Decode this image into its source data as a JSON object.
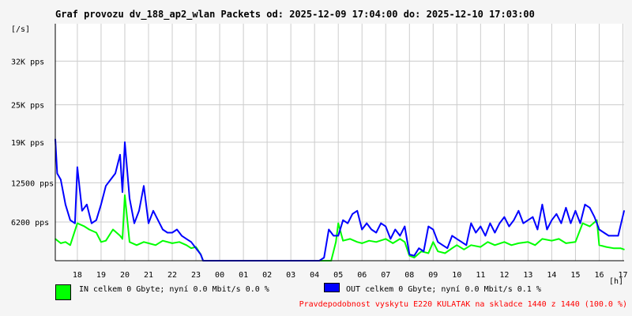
{
  "title": "Graf provozu dv_188_ap2_wlan Packets od: 2025-12-09 17:04:00 do: 2025-12-10 17:03:00",
  "footnote": "Pravdepodobnost vyskytu E220 KULATAK na skladce 1440 z 1440 (100.0 %)",
  "colors": {
    "in": "#00ff00",
    "out": "#0000ff",
    "grid": "#cccccc",
    "axis": "#000000"
  },
  "chart_data": {
    "type": "line",
    "ylabel": "[/s]",
    "xlabel": "[h]",
    "ylim": [
      0,
      38000
    ],
    "yticks": [
      {
        "value": 6200,
        "label": "6200 pps"
      },
      {
        "value": 12500,
        "label": "12500 pps"
      },
      {
        "value": 19000,
        "label": "19K pps"
      },
      {
        "value": 25000,
        "label": "25K pps"
      },
      {
        "value": 32000,
        "label": "32K pps"
      }
    ],
    "xlim": [
      17.07,
      41.05
    ],
    "xticks": [
      {
        "value": 18,
        "label": "18"
      },
      {
        "value": 19,
        "label": "19"
      },
      {
        "value": 20,
        "label": "20"
      },
      {
        "value": 21,
        "label": "21"
      },
      {
        "value": 22,
        "label": "22"
      },
      {
        "value": 23,
        "label": "23"
      },
      {
        "value": 24,
        "label": "00"
      },
      {
        "value": 25,
        "label": "01"
      },
      {
        "value": 26,
        "label": "02"
      },
      {
        "value": 27,
        "label": "03"
      },
      {
        "value": 28,
        "label": "04"
      },
      {
        "value": 29,
        "label": "05"
      },
      {
        "value": 30,
        "label": "06"
      },
      {
        "value": 31,
        "label": "07"
      },
      {
        "value": 32,
        "label": "08"
      },
      {
        "value": 33,
        "label": "09"
      },
      {
        "value": 34,
        "label": "10"
      },
      {
        "value": 35,
        "label": "11"
      },
      {
        "value": 36,
        "label": "12"
      },
      {
        "value": 37,
        "label": "13"
      },
      {
        "value": 38,
        "label": "14"
      },
      {
        "value": 39,
        "label": "15"
      },
      {
        "value": 40,
        "label": "16"
      },
      {
        "value": 41,
        "label": "17"
      }
    ],
    "grid": true,
    "legend": "bottom",
    "series": [
      {
        "name": "IN celkem 0 Gbyte; nyní   0.0 Mbit/s 0.0 %",
        "color": "#00ff00",
        "x": [
          17.07,
          17.3,
          17.5,
          17.7,
          18.0,
          18.3,
          18.5,
          18.8,
          19.0,
          19.2,
          19.5,
          19.8,
          19.9,
          20.0,
          20.2,
          20.5,
          20.8,
          21.0,
          21.3,
          21.6,
          22.0,
          22.3,
          22.6,
          22.8,
          23.0,
          23.2,
          23.3,
          28.7,
          28.9,
          29.0,
          29.2,
          29.5,
          29.8,
          30.0,
          30.3,
          30.6,
          31.0,
          31.3,
          31.6,
          31.8,
          32.0,
          32.2,
          32.5,
          32.8,
          33.0,
          33.2,
          33.5,
          33.8,
          34.0,
          34.3,
          34.6,
          35.0,
          35.3,
          35.6,
          36.0,
          36.3,
          36.6,
          37.0,
          37.3,
          37.6,
          38.0,
          38.3,
          38.6,
          39.0,
          39.3,
          39.6,
          39.9,
          40.0,
          40.3,
          40.6,
          40.9,
          41.05
        ],
        "y": [
          3500,
          2800,
          3000,
          2500,
          6000,
          5500,
          5000,
          4500,
          3000,
          3200,
          5000,
          4000,
          3500,
          10500,
          3000,
          2500,
          3000,
          2800,
          2500,
          3200,
          2800,
          3000,
          2500,
          2000,
          2200,
          1000,
          0,
          0,
          3000,
          6000,
          3200,
          3500,
          3000,
          2800,
          3200,
          3000,
          3500,
          2800,
          3500,
          3000,
          800,
          500,
          1500,
          1200,
          3000,
          1500,
          1200,
          2000,
          2500,
          1800,
          2500,
          2200,
          3000,
          2500,
          3000,
          2500,
          2800,
          3000,
          2500,
          3500,
          3200,
          3500,
          2800,
          3000,
          6000,
          5500,
          6500,
          2500,
          2200,
          2000,
          2000,
          1800
        ]
      },
      {
        "name": "OUT celkem 0 Gbyte; nyní   0.0 Mbit/s 0.1 %",
        "color": "#0000ff",
        "x": [
          17.07,
          17.15,
          17.3,
          17.5,
          17.7,
          17.9,
          18.0,
          18.2,
          18.4,
          18.6,
          18.8,
          19.0,
          19.2,
          19.4,
          19.6,
          19.8,
          19.9,
          20.0,
          20.2,
          20.4,
          20.6,
          20.8,
          21.0,
          21.2,
          21.4,
          21.6,
          21.8,
          22.0,
          22.2,
          22.4,
          22.6,
          22.8,
          23.0,
          23.2,
          23.3,
          28.2,
          28.4,
          28.6,
          28.8,
          29.0,
          29.2,
          29.4,
          29.6,
          29.8,
          30.0,
          30.2,
          30.4,
          30.6,
          30.8,
          31.0,
          31.2,
          31.4,
          31.6,
          31.8,
          32.0,
          32.2,
          32.4,
          32.6,
          32.8,
          33.0,
          33.2,
          33.4,
          33.6,
          33.8,
          34.0,
          34.2,
          34.4,
          34.6,
          34.8,
          35.0,
          35.2,
          35.4,
          35.6,
          35.8,
          36.0,
          36.2,
          36.4,
          36.6,
          36.8,
          37.0,
          37.2,
          37.4,
          37.6,
          37.8,
          38.0,
          38.2,
          38.4,
          38.6,
          38.8,
          39.0,
          39.2,
          39.4,
          39.6,
          39.8,
          40.0,
          40.2,
          40.4,
          40.6,
          40.8,
          41.05
        ],
        "y": [
          19500,
          14000,
          13000,
          9000,
          6500,
          6000,
          15000,
          8000,
          9000,
          6000,
          6500,
          9000,
          12000,
          13000,
          14000,
          17000,
          11000,
          19000,
          10000,
          6000,
          8000,
          12000,
          6000,
          8000,
          6500,
          5000,
          4500,
          4500,
          5000,
          4000,
          3500,
          3000,
          2000,
          1000,
          0,
          0,
          500,
          5000,
          4000,
          4000,
          6500,
          6000,
          7500,
          8000,
          5000,
          6000,
          5000,
          4500,
          6000,
          5500,
          3500,
          5000,
          4000,
          5500,
          1000,
          800,
          2000,
          1500,
          5500,
          5000,
          3000,
          2500,
          2000,
          4000,
          3500,
          3000,
          2500,
          6000,
          4500,
          5500,
          4000,
          6000,
          4500,
          6000,
          7000,
          5500,
          6500,
          8000,
          6000,
          6500,
          7000,
          5000,
          9000,
          5000,
          6500,
          7500,
          6000,
          8500,
          6000,
          8000,
          6000,
          9000,
          8500,
          7000,
          5000,
          4500,
          4000,
          4000,
          4000,
          8000
        ]
      }
    ]
  }
}
